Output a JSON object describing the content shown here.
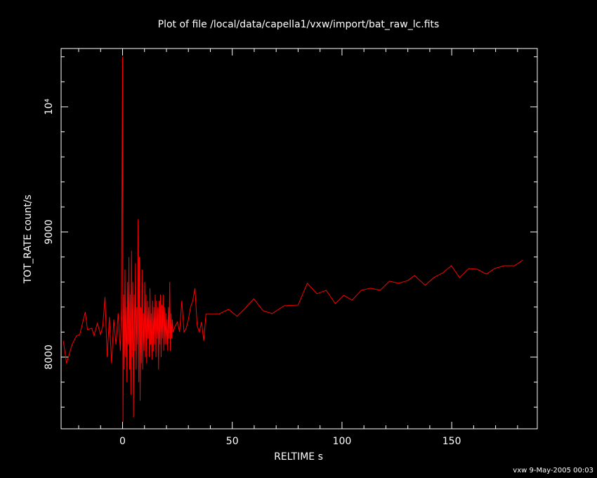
{
  "chart_data": {
    "type": "line",
    "title": "Plot of file /local/data/capella1/vxw/import/bat_raw_lc.fits",
    "x_label": "RELTIME  s",
    "y_label": "TOT_RATE  count/s",
    "footer": "vxw  9-May-2005 00:03",
    "color": "#ff0000",
    "xlim": [
      -28,
      189
    ],
    "ylim": [
      7427,
      10466
    ],
    "xticks": [
      0,
      50,
      100,
      150
    ],
    "yticks": [
      8000,
      9000,
      {
        "value": 10000,
        "label": "10⁴"
      }
    ],
    "xminor_ticks": [
      -20,
      -10,
      10,
      20,
      30,
      40,
      60,
      70,
      80,
      90,
      110,
      120,
      130,
      140,
      160,
      170,
      180
    ],
    "yminor_ticks": [
      7600,
      7800,
      8200,
      8400,
      8600,
      8800,
      9200,
      9400,
      9600,
      9800,
      10200,
      10400
    ],
    "x": [
      -27,
      -25.5,
      -23,
      -21,
      -19.5,
      -17,
      -16,
      -14,
      -13,
      -11.5,
      -10,
      -9,
      -8,
      -7,
      -6,
      -5,
      -4,
      -3,
      -2,
      -1,
      -0.5,
      0,
      0.2,
      0.5,
      0.8,
      1.1,
      1.4,
      1.7,
      2,
      2.3,
      2.6,
      2.9,
      3.2,
      3.5,
      3.8,
      4.1,
      4.4,
      4.7,
      5,
      5.3,
      5.6,
      5.9,
      6.2,
      6.5,
      6.8,
      7.1,
      7.4,
      7.7,
      8,
      8.3,
      8.6,
      8.9,
      9.2,
      9.5,
      9.8,
      10.1,
      10.4,
      10.7,
      11,
      11.3,
      11.6,
      11.9,
      12.2,
      12.5,
      12.8,
      13.1,
      13.4,
      13.7,
      14,
      14.3,
      14.6,
      14.9,
      15.2,
      15.5,
      15.8,
      16.1,
      16.4,
      16.7,
      17,
      17.3,
      17.6,
      17.9,
      18.2,
      18.5,
      18.8,
      19.1,
      19.4,
      19.7,
      20,
      20.3,
      20.6,
      20.9,
      21.2,
      21.5,
      21.8,
      22.1,
      22.4,
      22.7,
      23,
      24,
      25,
      26,
      27,
      28,
      29,
      30,
      31,
      32,
      33,
      34,
      35,
      36,
      37,
      38,
      43.8,
      48.3,
      52.2,
      55.4,
      59.8,
      64,
      68.2,
      73.6,
      80,
      84.2,
      88.6,
      92.8,
      97,
      100.8,
      104.6,
      108.8,
      113,
      117.4,
      121.6,
      125.8,
      130,
      133.1,
      137.9,
      141.8,
      146,
      149.8,
      153.6,
      157.8,
      161.6,
      165.8,
      169.6,
      173.8,
      178.6,
      182.4
    ],
    "values": [
      8130,
      7950,
      8100,
      8170,
      8180,
      8360,
      8220,
      8230,
      8170,
      8270,
      8180,
      8250,
      8480,
      8000,
      8320,
      7950,
      8300,
      8100,
      8350,
      8050,
      8400,
      10400,
      7480,
      8500,
      7900,
      8700,
      8000,
      8400,
      7800,
      8600,
      8100,
      8800,
      7900,
      8500,
      7700,
      8850,
      8000,
      8600,
      7520,
      8500,
      8050,
      8750,
      7900,
      8400,
      8100,
      9100,
      7800,
      8800,
      7650,
      8400,
      7950,
      8700,
      7900,
      8350,
      8050,
      8600,
      8000,
      8500,
      7950,
      8450,
      8150,
      8400,
      8000,
      8550,
      8100,
      8350,
      7980,
      8450,
      8050,
      8400,
      8100,
      8500,
      8000,
      8450,
      8150,
      8400,
      7900,
      8450,
      8100,
      8500,
      8000,
      8420,
      8150,
      8500,
      8050,
      8400,
      8100,
      8350,
      8100,
      8300,
      8050,
      8400,
      8150,
      8600,
      8050,
      8350,
      8150,
      8300,
      8200,
      8250,
      8280,
      8200,
      8450,
      8200,
      8230,
      8300,
      8400,
      8450,
      8550,
      8250,
      8200,
      8280,
      8130,
      8343,
      8343,
      8382,
      8326,
      8382,
      8466,
      8371,
      8348,
      8410,
      8416,
      8590,
      8506,
      8534,
      8427,
      8494,
      8455,
      8534,
      8551,
      8534,
      8607,
      8590,
      8612,
      8652,
      8573,
      8635,
      8674,
      8730,
      8635,
      8708,
      8702,
      8663,
      8708,
      8730,
      8730,
      8775
    ]
  }
}
